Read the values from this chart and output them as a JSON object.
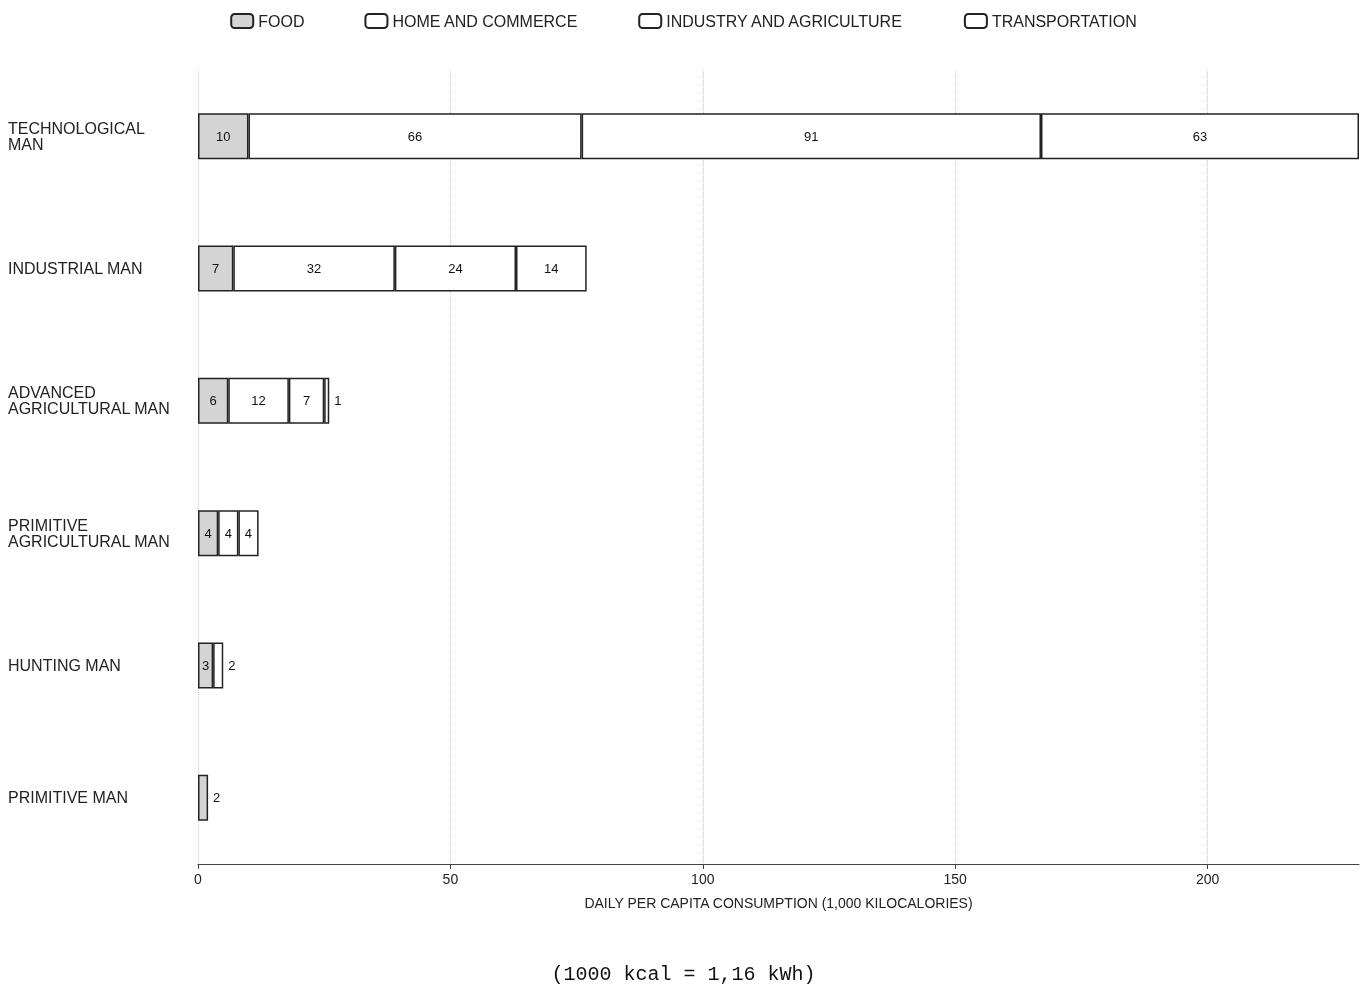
{
  "chart_data": {
    "type": "bar",
    "orientation": "horizontal",
    "stacked": true,
    "data_labels": true,
    "categories": [
      "TECHNOLOGICAL MAN",
      "INDUSTRIAL MAN",
      "ADVANCED AGRICULTURAL MAN",
      "PRIMITIVE AGRICULTURAL MAN",
      "HUNTING MAN",
      "PRIMITIVE MAN"
    ],
    "series": [
      {
        "name": "FOOD",
        "color": "#d4d4d4",
        "values": [
          10,
          7,
          6,
          4,
          3,
          2
        ]
      },
      {
        "name": "HOME AND COMMERCE",
        "color": "#ffffff",
        "values": [
          66,
          32,
          12,
          4,
          2,
          null
        ]
      },
      {
        "name": "INDUSTRY AND AGRICULTURE",
        "color": "#ffffff",
        "values": [
          91,
          24,
          7,
          4,
          null,
          null
        ]
      },
      {
        "name": "TRANSPORTATION",
        "color": "#ffffff",
        "values": [
          63,
          14,
          1,
          null,
          null,
          null
        ]
      }
    ],
    "xlim": [
      0,
      230
    ],
    "xticks": [
      0,
      50,
      100,
      150,
      200
    ],
    "grid": "x",
    "legend": "top",
    "xlabel": "DAILY PER CAPITA CONSUMPTION (1,000 KILOCALORIES)",
    "annotations": [
      "(1000 kcal = 1,16 kWh)"
    ]
  }
}
